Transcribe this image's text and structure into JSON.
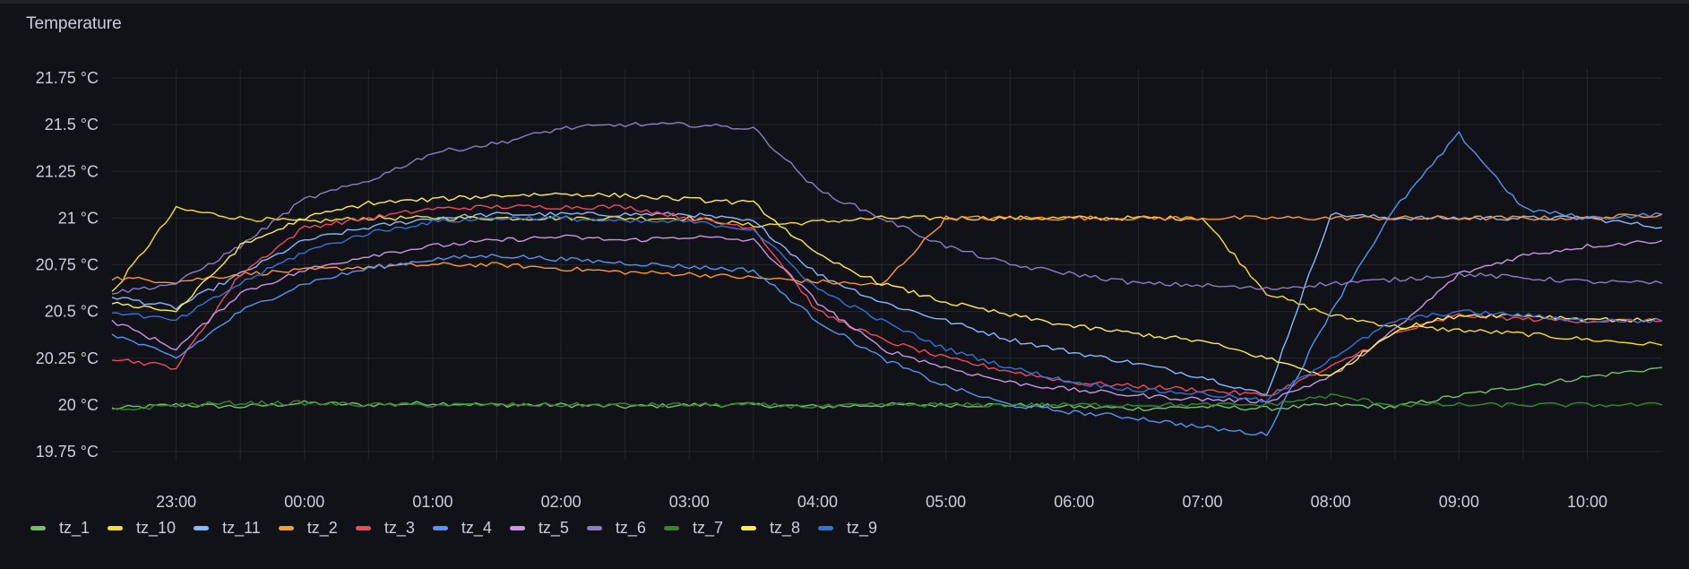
{
  "panel": {
    "title": "Temperature"
  },
  "chart_data": {
    "type": "line",
    "unit": "°C",
    "ylim": [
      19.75,
      21.75
    ],
    "yticks": [
      19.75,
      20,
      20.25,
      20.5,
      20.75,
      21,
      21.25,
      21.5,
      21.75
    ],
    "ytick_labels": [
      "19.75 °C",
      "20 °C",
      "20.25 °C",
      "20.5 °C",
      "20.75 °C",
      "21 °C",
      "21.25 °C",
      "21.5 °C",
      "21.75 °C"
    ],
    "xlim": [
      "22:30",
      "10:35"
    ],
    "x": [
      "22:30",
      "23:00",
      "23:30",
      "00:00",
      "00:30",
      "01:00",
      "01:30",
      "02:00",
      "02:30",
      "03:00",
      "03:30",
      "04:00",
      "04:30",
      "05:00",
      "05:30",
      "06:00",
      "06:30",
      "07:00",
      "07:30",
      "08:00",
      "08:30",
      "09:00",
      "09:30",
      "10:00",
      "10:35"
    ],
    "xtick_labels": [
      "23:00",
      "00:00",
      "01:00",
      "02:00",
      "03:00",
      "04:00",
      "05:00",
      "06:00",
      "07:00",
      "08:00",
      "09:00",
      "10:00"
    ],
    "grid": true,
    "legend_position": "bottom-left",
    "series": [
      {
        "name": "tz_1",
        "color": "#73bf69",
        "values": [
          19.98,
          20.0,
          19.99,
          20.01,
          20.0,
          20.01,
          20.0,
          20.0,
          19.99,
          20.0,
          20.0,
          19.99,
          20.0,
          20.0,
          20.0,
          19.99,
          19.98,
          19.99,
          19.98,
          20.0,
          19.99,
          20.05,
          20.1,
          20.15,
          20.2
        ]
      },
      {
        "name": "tz_10",
        "color": "#fade2a",
        "values": [
          20.6,
          21.05,
          21.0,
          20.98,
          21.0,
          21.0,
          21.0,
          21.0,
          21.0,
          21.0,
          20.96,
          20.98,
          21.0,
          21.0,
          21.0,
          21.0,
          21.0,
          21.0,
          20.6,
          20.48,
          20.42,
          20.4,
          20.38,
          20.35,
          20.32
        ]
      },
      {
        "name": "tz_11",
        "color": "#8ab8ff",
        "values": [
          20.58,
          20.52,
          20.7,
          20.88,
          20.95,
          21.0,
          21.02,
          21.02,
          21.02,
          21.02,
          20.98,
          20.7,
          20.55,
          20.45,
          20.35,
          20.28,
          20.22,
          20.15,
          20.05,
          21.02,
          21.0,
          21.0,
          21.0,
          21.0,
          20.95
        ]
      },
      {
        "name": "tz_2",
        "color": "#ff9830",
        "values": [
          20.68,
          20.66,
          20.7,
          20.72,
          20.74,
          20.75,
          20.75,
          20.73,
          20.71,
          20.7,
          20.68,
          20.66,
          20.64,
          21.0,
          21.0,
          21.0,
          21.0,
          21.0,
          21.0,
          21.0,
          21.0,
          21.0,
          21.0,
          21.0,
          21.02
        ]
      },
      {
        "name": "tz_3",
        "color": "#f2495c",
        "values": [
          20.25,
          20.2,
          20.7,
          20.95,
          21.0,
          21.05,
          21.06,
          21.06,
          21.06,
          21.0,
          20.95,
          20.5,
          20.35,
          20.25,
          20.18,
          20.12,
          20.1,
          20.08,
          20.05,
          20.2,
          20.38,
          20.48,
          20.46,
          20.45,
          20.45
        ]
      },
      {
        "name": "tz_4",
        "color": "#5794f2",
        "values": [
          20.38,
          20.25,
          20.5,
          20.65,
          20.73,
          20.78,
          20.8,
          20.78,
          20.76,
          20.74,
          20.72,
          20.45,
          20.25,
          20.1,
          20.0,
          19.96,
          19.93,
          19.88,
          19.84,
          20.5,
          21.05,
          21.45,
          21.05,
          21.0,
          21.02
        ]
      },
      {
        "name": "tz_5",
        "color": "#ca95e5",
        "values": [
          20.45,
          20.3,
          20.6,
          20.72,
          20.8,
          20.85,
          20.88,
          20.9,
          20.88,
          20.9,
          20.88,
          20.55,
          20.3,
          20.2,
          20.12,
          20.08,
          20.05,
          20.03,
          20.02,
          20.15,
          20.4,
          20.7,
          20.8,
          20.85,
          20.88
        ]
      },
      {
        "name": "tz_6",
        "color": "#8f7bc7",
        "values": [
          20.6,
          20.65,
          20.85,
          21.1,
          21.2,
          21.35,
          21.4,
          21.48,
          21.5,
          21.5,
          21.48,
          21.15,
          21.0,
          20.85,
          20.75,
          20.7,
          20.65,
          20.64,
          20.62,
          20.65,
          20.67,
          20.7,
          20.68,
          20.66,
          20.65
        ]
      },
      {
        "name": "tz_7",
        "color": "#37872d",
        "values": [
          19.97,
          20.0,
          20.01,
          20.01,
          20.0,
          20.0,
          20.0,
          20.0,
          20.0,
          20.0,
          20.0,
          19.99,
          20.0,
          20.0,
          20.0,
          20.0,
          20.0,
          20.0,
          20.0,
          20.05,
          20.0,
          20.0,
          20.0,
          20.0,
          20.0
        ]
      },
      {
        "name": "tz_8",
        "color": "#ffee52",
        "values": [
          20.55,
          20.5,
          20.85,
          21.0,
          21.08,
          21.1,
          21.12,
          21.13,
          21.12,
          21.1,
          21.08,
          20.8,
          20.65,
          20.55,
          20.48,
          20.42,
          20.38,
          20.34,
          20.25,
          20.15,
          20.4,
          20.48,
          20.48,
          20.46,
          20.45
        ]
      },
      {
        "name": "tz_9",
        "color": "#3274d9",
        "values": [
          20.5,
          20.45,
          20.65,
          20.82,
          20.92,
          20.98,
          21.0,
          21.0,
          20.98,
          20.98,
          20.94,
          20.62,
          20.45,
          20.3,
          20.2,
          20.12,
          20.08,
          20.06,
          20.02,
          20.25,
          20.45,
          20.5,
          20.48,
          20.45,
          20.45
        ]
      }
    ]
  }
}
